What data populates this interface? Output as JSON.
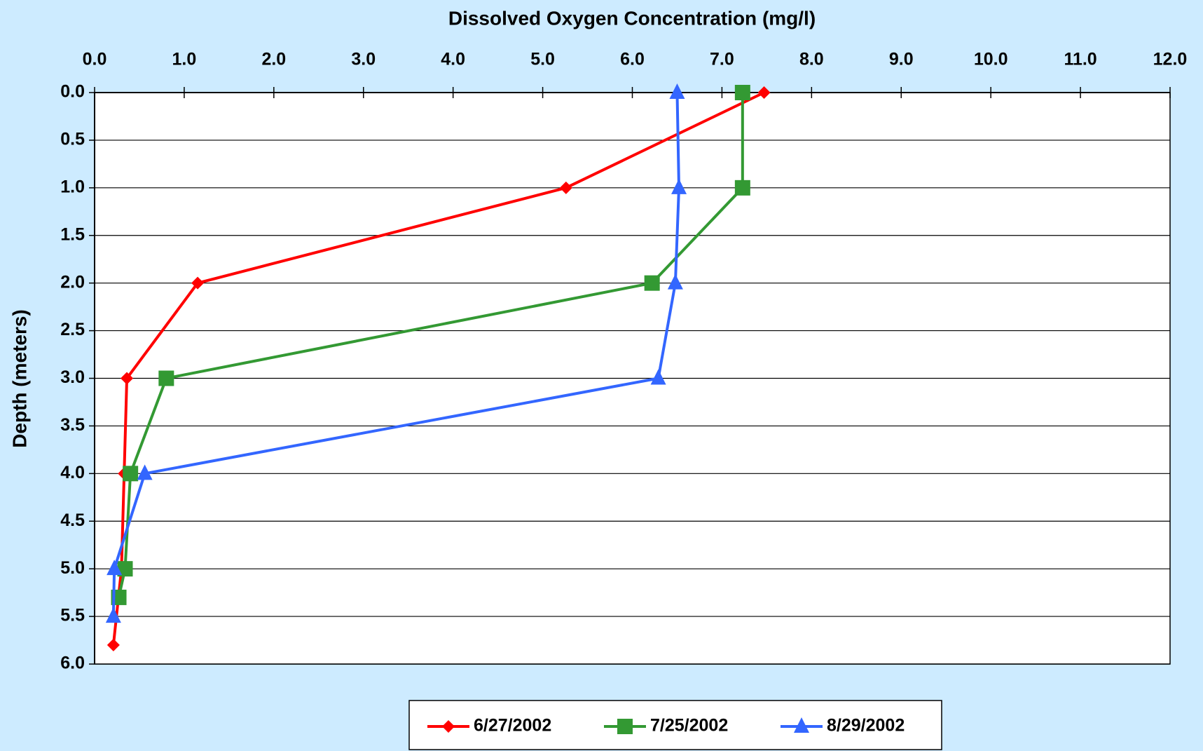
{
  "chart_data": {
    "type": "line",
    "title": "Dissolved Oxygen Concentration (mg/l)",
    "y_label": "Depth (meters)",
    "xlim": [
      0,
      12
    ],
    "ylim": [
      0,
      6
    ],
    "y_inverted": true,
    "x_axis_position": "top",
    "xticks": [
      {
        "value": 0,
        "label": "0.0"
      },
      {
        "value": 1,
        "label": "1.0"
      },
      {
        "value": 2,
        "label": "2.0"
      },
      {
        "value": 3,
        "label": "3.0"
      },
      {
        "value": 4,
        "label": "4.0"
      },
      {
        "value": 5,
        "label": "5.0"
      },
      {
        "value": 6,
        "label": "6.0"
      },
      {
        "value": 7,
        "label": "7.0"
      },
      {
        "value": 8,
        "label": "8.0"
      },
      {
        "value": 9,
        "label": "9.0"
      },
      {
        "value": 10,
        "label": "10.0"
      },
      {
        "value": 11,
        "label": "11.0"
      },
      {
        "value": 12,
        "label": "12.0"
      }
    ],
    "yticks": [
      {
        "value": 0,
        "label": "0.0"
      },
      {
        "value": 0.5,
        "label": "0.5"
      },
      {
        "value": 1,
        "label": "1.0"
      },
      {
        "value": 1.5,
        "label": "1.5"
      },
      {
        "value": 2,
        "label": "2.0"
      },
      {
        "value": 2.5,
        "label": "2.5"
      },
      {
        "value": 3,
        "label": "3.0"
      },
      {
        "value": 3.5,
        "label": "3.5"
      },
      {
        "value": 4,
        "label": "4.0"
      },
      {
        "value": 4.5,
        "label": "4.5"
      },
      {
        "value": 5,
        "label": "5.0"
      },
      {
        "value": 5.5,
        "label": "5.5"
      },
      {
        "value": 6,
        "label": "6.0"
      }
    ],
    "grid": true,
    "legend": "bottom",
    "series": [
      {
        "name": "6/27/2002",
        "color": "#ff0000",
        "marker": "diamond",
        "x": [
          7.47,
          5.26,
          1.15,
          0.36,
          0.33,
          0.3,
          0.21
        ],
        "y": [
          0,
          1,
          2,
          3,
          4,
          5,
          5.8
        ]
      },
      {
        "name": "7/25/2002",
        "color": "#339933",
        "marker": "square",
        "x": [
          7.23,
          7.23,
          6.22,
          0.8,
          0.4,
          0.34,
          0.27
        ],
        "y": [
          0,
          1,
          2,
          3,
          4,
          5,
          5.3
        ]
      },
      {
        "name": "8/29/2002",
        "color": "#3366ff",
        "marker": "triangle",
        "x": [
          6.5,
          6.52,
          6.48,
          6.29,
          0.56,
          0.22,
          0.21
        ],
        "y": [
          0,
          1,
          2,
          3,
          4,
          5,
          5.5
        ]
      }
    ]
  }
}
